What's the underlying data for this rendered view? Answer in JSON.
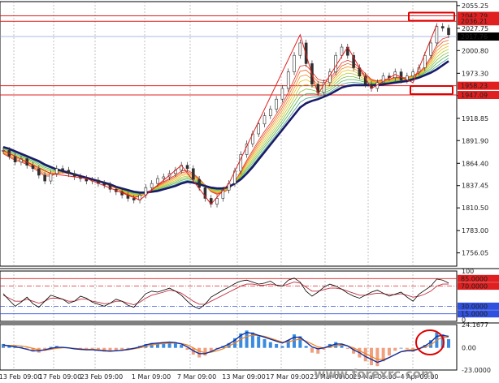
{
  "chart_data": {
    "type": "line",
    "main": {
      "ylim": [
        1740,
        2060
      ],
      "y_ticks": [
        "2055.25",
        "2027.75",
        "2000.80",
        "1973.30",
        "1946.35",
        "1918.85",
        "1891.90",
        "1864.40",
        "1837.45",
        "1810.50",
        "1783.00",
        "1756.05"
      ],
      "h_levels": [
        {
          "value": 2042.79,
          "label": "2042.79",
          "color": "#e02020"
        },
        {
          "value": 2036.21,
          "label": "2036.21",
          "color": "#e02020"
        },
        {
          "value": 1958.23,
          "label": "1958.23",
          "color": "#e02020"
        },
        {
          "value": 1947.09,
          "label": "1947.09",
          "color": "#e02020"
        }
      ],
      "current_price": {
        "value": 2017.76,
        "label": "2017.76",
        "color": "#3060c0"
      },
      "close": [
        1880,
        1873,
        1866,
        1870,
        1862,
        1858,
        1850,
        1843,
        1852,
        1858,
        1856,
        1852,
        1848,
        1846,
        1843,
        1844,
        1840,
        1838,
        1833,
        1830,
        1826,
        1822,
        1820,
        1826,
        1835,
        1840,
        1846,
        1848,
        1852,
        1856,
        1862,
        1858,
        1845,
        1835,
        1822,
        1815,
        1822,
        1832,
        1840,
        1855,
        1875,
        1888,
        1900,
        1912,
        1922,
        1930,
        1942,
        1955,
        1975,
        1995,
        2010,
        1985,
        1960,
        1950,
        1962,
        1975,
        1995,
        2005,
        1995,
        1980,
        1970,
        1960,
        1955,
        1962,
        1970,
        1968,
        1975,
        1965,
        1970,
        1975,
        1980,
        1995,
        2010,
        2030,
        2028,
        2020
      ],
      "ma_fast": [
        1876,
        1872,
        1868,
        1866,
        1863,
        1859,
        1854,
        1849,
        1849,
        1852,
        1853,
        1852,
        1850,
        1848,
        1846,
        1845,
        1843,
        1840,
        1837,
        1834,
        1830,
        1826,
        1823,
        1824,
        1828,
        1833,
        1838,
        1842,
        1846,
        1850,
        1855,
        1856,
        1852,
        1846,
        1838,
        1830,
        1827,
        1829,
        1833,
        1842,
        1855,
        1868,
        1880,
        1892,
        1903,
        1913,
        1924,
        1936,
        1950,
        1966,
        1982,
        1983,
        1975,
        1966,
        1964,
        1967,
        1976,
        1986,
        1989,
        1986,
        1980,
        1973,
        1966,
        1964,
        1966,
        1966,
        1969,
        1968,
        1968,
        1971,
        1974,
        1982,
        1993,
        2008,
        2015,
        2017
      ],
      "ma_slow": [
        1884,
        1882,
        1879,
        1876,
        1873,
        1870,
        1867,
        1863,
        1860,
        1857,
        1855,
        1853,
        1851,
        1849,
        1847,
        1845,
        1843,
        1841,
        1839,
        1836,
        1834,
        1832,
        1830,
        1829,
        1829,
        1830,
        1831,
        1833,
        1835,
        1837,
        1840,
        1842,
        1841,
        1839,
        1837,
        1835,
        1834,
        1834,
        1836,
        1840,
        1845,
        1852,
        1860,
        1869,
        1878,
        1887,
        1896,
        1905,
        1914,
        1923,
        1932,
        1937,
        1940,
        1942,
        1945,
        1948,
        1952,
        1956,
        1958,
        1959,
        1959,
        1959,
        1959,
        1959,
        1960,
        1961,
        1962,
        1963,
        1964,
        1966,
        1968,
        1971,
        1974,
        1978,
        1983,
        1988
      ],
      "zigzag": [
        [
          0,
          1880
        ],
        [
          8,
          1852
        ],
        [
          14,
          1846
        ],
        [
          23,
          1820
        ],
        [
          30,
          1862
        ],
        [
          35,
          1815
        ],
        [
          38,
          1840
        ],
        [
          50,
          2020
        ],
        [
          53,
          1948
        ],
        [
          58,
          2005
        ],
        [
          62,
          1955
        ],
        [
          66,
          1972
        ],
        [
          69,
          1962
        ],
        [
          73,
          2032
        ]
      ]
    },
    "rsi": {
      "ylim": [
        0,
        100
      ],
      "levels": [
        {
          "value": 85,
          "label": "85.0000",
          "color": "#e02020"
        },
        {
          "value": 70,
          "label": "70.0000",
          "color": "#e02020"
        },
        {
          "value": 30,
          "label": "30.0000",
          "color": "#3050e0"
        },
        {
          "value": 15,
          "label": "15.0000",
          "color": "#3050e0"
        }
      ],
      "top_tick": "100",
      "bottom_tick": "0",
      "series1": [
        55,
        42,
        30,
        38,
        48,
        35,
        28,
        40,
        52,
        48,
        44,
        36,
        40,
        50,
        46,
        38,
        34,
        30,
        36,
        44,
        40,
        32,
        28,
        42,
        55,
        60,
        58,
        62,
        66,
        60,
        52,
        40,
        30,
        25,
        34,
        48,
        55,
        62,
        68,
        75,
        80,
        82,
        78,
        74,
        76,
        80,
        72,
        70,
        82,
        86,
        78,
        60,
        50,
        58,
        68,
        74,
        70,
        64,
        56,
        50,
        46,
        52,
        58,
        62,
        56,
        50,
        54,
        58,
        48,
        40,
        54,
        62,
        70,
        84,
        82,
        76
      ],
      "series2": [
        52,
        46,
        40,
        40,
        44,
        40,
        36,
        40,
        46,
        46,
        44,
        40,
        40,
        44,
        44,
        40,
        38,
        35,
        36,
        40,
        40,
        36,
        33,
        38,
        46,
        52,
        55,
        58,
        62,
        60,
        56,
        48,
        40,
        34,
        34,
        40,
        46,
        52,
        58,
        64,
        70,
        74,
        74,
        72,
        72,
        74,
        72,
        70,
        74,
        78,
        76,
        68,
        60,
        60,
        63,
        66,
        66,
        64,
        60,
        56,
        52,
        52,
        54,
        56,
        55,
        53,
        53,
        55,
        52,
        48,
        50,
        54,
        60,
        70,
        74,
        74
      ]
    },
    "macd": {
      "y_ticks": [
        "24.1677",
        "0.00",
        "-23.0000"
      ],
      "ylim": [
        -23,
        24.1677
      ],
      "hist": [
        4,
        3,
        2,
        1,
        -1,
        -4,
        -5,
        -3,
        1,
        2,
        1,
        0,
        -1,
        -1,
        -2,
        -2,
        -3,
        -4,
        -4,
        -3,
        -2,
        -1,
        0,
        2,
        4,
        5,
        5,
        6,
        6,
        5,
        3,
        -2,
        -7,
        -10,
        -8,
        -4,
        -1,
        2,
        5,
        10,
        15,
        18,
        16,
        12,
        9,
        6,
        4,
        2,
        8,
        14,
        12,
        2,
        -5,
        -6,
        -2,
        4,
        6,
        4,
        -1,
        -6,
        -10,
        -14,
        -18,
        -19,
        -14,
        -8,
        -3,
        0,
        -1,
        -4,
        -2,
        3,
        8,
        16,
        14,
        9
      ],
      "signal": [
        2,
        2.5,
        2.5,
        2,
        1,
        -0.5,
        -2,
        -2.5,
        -1.5,
        -0.5,
        0,
        0,
        -0.5,
        -1,
        -1.5,
        -1.5,
        -2,
        -2.5,
        -3,
        -3,
        -2.5,
        -2,
        -1,
        0,
        1.5,
        3,
        4,
        4.5,
        5,
        5,
        4.5,
        3,
        0,
        -3.5,
        -5,
        -4.5,
        -3,
        -1,
        2,
        5,
        9,
        12,
        13,
        13,
        12,
        10,
        8,
        6,
        6,
        8,
        9,
        7,
        4,
        1,
        0,
        1,
        2,
        3,
        2,
        0,
        -3,
        -6,
        -9,
        -12,
        -12,
        -10,
        -7,
        -4,
        -2,
        -2,
        -1,
        1,
        3,
        8,
        11,
        11
      ],
      "main_line": [
        3,
        2,
        1,
        0,
        -1.5,
        -3,
        -3,
        -2,
        -0.5,
        0.5,
        0.5,
        0,
        -1,
        -1.5,
        -2,
        -2,
        -2.5,
        -3,
        -3.5,
        -3,
        -2.5,
        -1.5,
        -0.5,
        1,
        3,
        4.5,
        5,
        5.5,
        6,
        5.5,
        4,
        1,
        -3,
        -6,
        -6,
        -4,
        -1,
        1,
        4,
        8,
        13,
        16,
        15,
        13,
        11,
        9,
        7,
        5,
        8,
        11,
        11,
        6,
        1,
        -1,
        0,
        2,
        4,
        4,
        2,
        -2,
        -5,
        -9,
        -12,
        -15,
        -13,
        -10,
        -7,
        -4,
        -3,
        -3,
        -1,
        2,
        6,
        12,
        13,
        12
      ]
    },
    "x_tick_labels": [
      "13 Feb 09:00",
      "17 Feb 09:00",
      "23 Feb 09:00",
      "1 Mar 09:00",
      "7 Mar 09:00",
      "13 Mar 09:00",
      "17 Mar 09:00",
      "23 Mar 09:00",
      "29 Mar 09:00",
      "4 Apr 09:00"
    ],
    "watermark": "www.forexrc.com",
    "annotations": [
      "red-box-upper",
      "red-box-lower",
      "red-circle-macd"
    ]
  },
  "colors": {
    "price_line": "#d02020",
    "ma_fast": "#4a9a30",
    "ma_slow": "#1a1a6a",
    "zigzag": "#e02020",
    "rsi1": "#000000",
    "rsi2": "#c03040",
    "macd_hist_pos": "#3a8ae0",
    "macd_hist_neg": "#f0a080",
    "macd_signal": "#f08020",
    "macd_main": "#1030a0",
    "grid": "#999999"
  }
}
